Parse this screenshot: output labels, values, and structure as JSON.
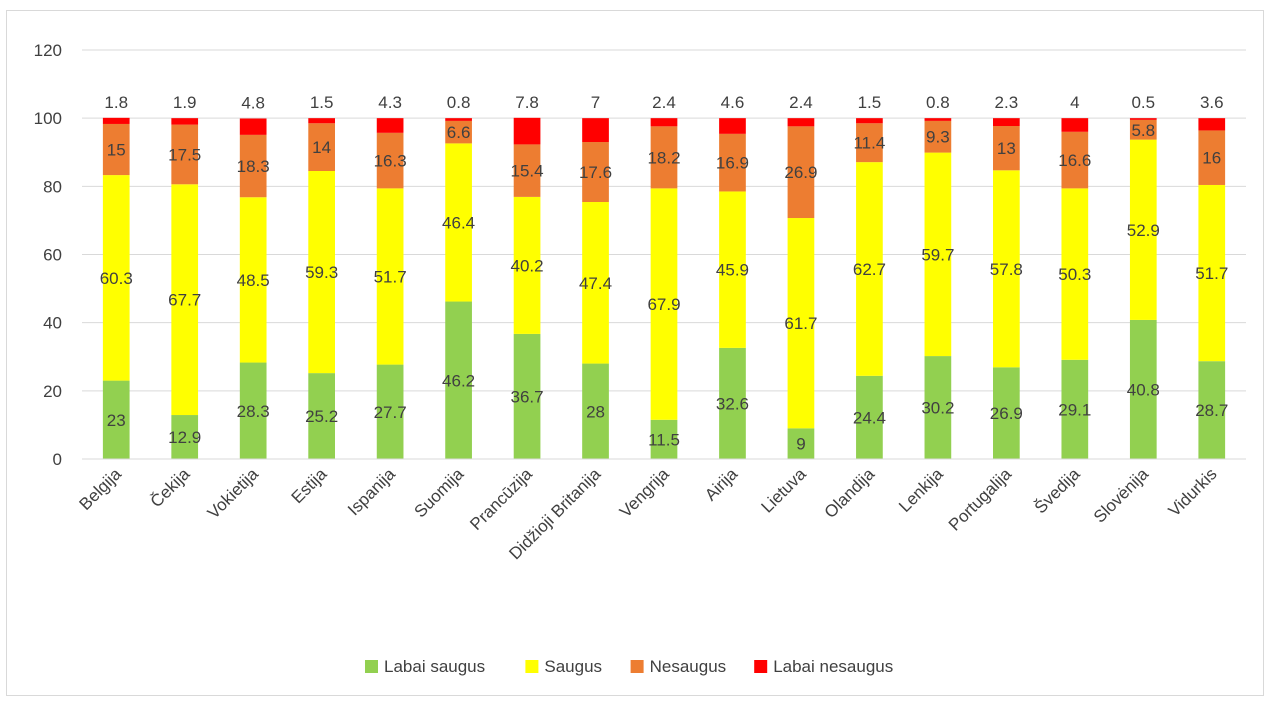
{
  "chart_data": {
    "type": "bar",
    "stacked": true,
    "categories": [
      "Belgija",
      "Čekija",
      "Vokietija",
      "Estija",
      "Ispanija",
      "Suomija",
      "Prancūzija",
      "Didžioji Britanija",
      "Vengrija",
      "Airija",
      "Lietuva",
      "Olandija",
      "Lenkija",
      "Portugalija",
      "Švedija",
      "Slovėnija",
      "Vidurkis"
    ],
    "series": [
      {
        "name": "Labai saugus",
        "color": "#92d050",
        "values": [
          23,
          12.9,
          28.3,
          25.2,
          27.7,
          46.2,
          36.7,
          28,
          11.5,
          32.6,
          9,
          24.4,
          30.2,
          26.9,
          29.1,
          40.8,
          28.7
        ]
      },
      {
        "name": "Saugus",
        "color": "#ffff00",
        "values": [
          60.3,
          67.7,
          48.5,
          59.3,
          51.7,
          46.4,
          40.2,
          47.4,
          67.9,
          45.9,
          61.7,
          62.7,
          59.7,
          57.8,
          50.3,
          52.9,
          51.7
        ]
      },
      {
        "name": "Nesaugus",
        "color": "#ed7d31",
        "values": [
          15,
          17.5,
          18.3,
          14,
          16.3,
          6.6,
          15.4,
          17.6,
          18.2,
          16.9,
          26.9,
          11.4,
          9.3,
          13,
          16.6,
          5.8,
          16
        ]
      },
      {
        "name": "Labai nesaugus",
        "color": "#ff0000",
        "values": [
          1.8,
          1.9,
          4.8,
          1.5,
          4.3,
          0.8,
          7.8,
          7,
          2.4,
          4.6,
          2.4,
          1.5,
          0.8,
          2.3,
          4,
          0.5,
          3.6
        ]
      }
    ],
    "ylim": [
      0,
      120
    ],
    "yticks": [
      0,
      20,
      40,
      60,
      80,
      100,
      120
    ],
    "grid": true,
    "legend": "bottom",
    "title": "",
    "xlabel": "",
    "ylabel": ""
  }
}
